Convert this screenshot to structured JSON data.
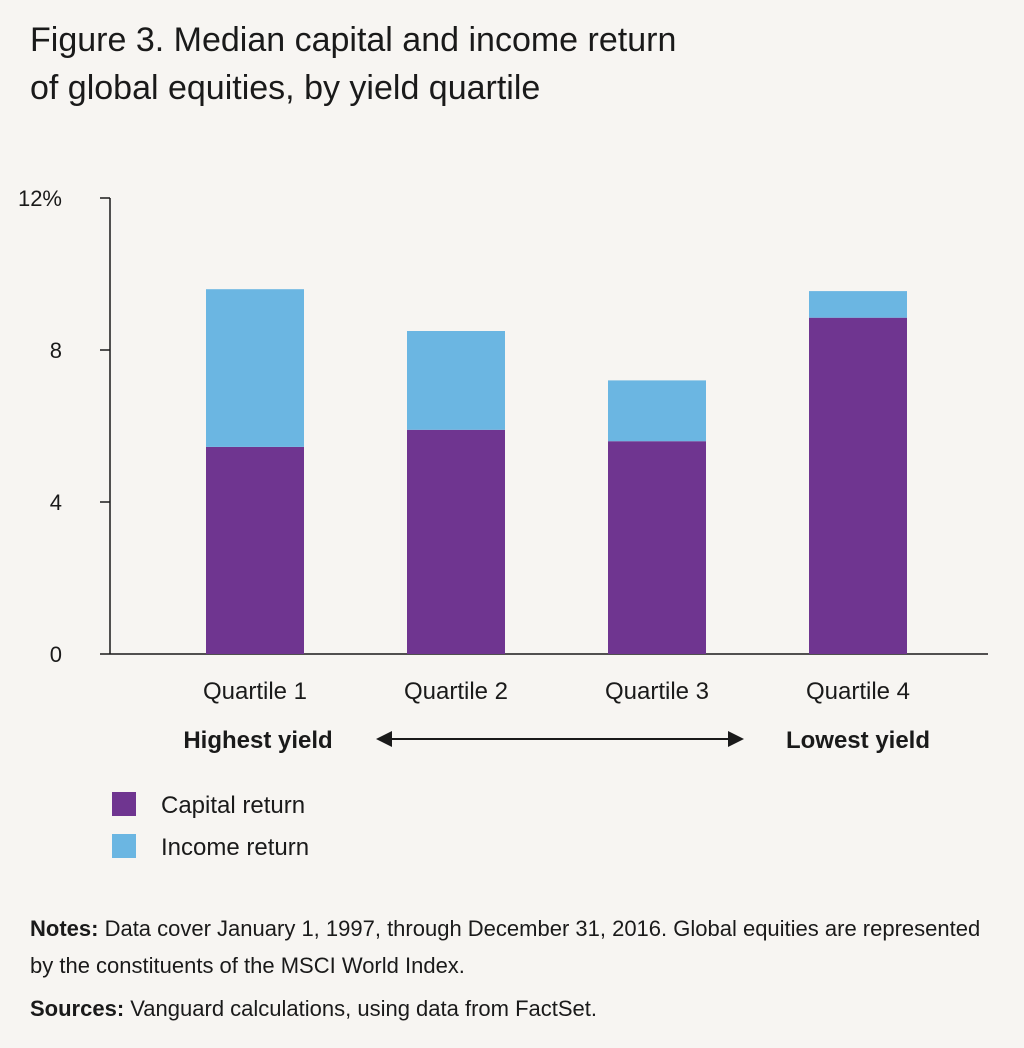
{
  "title": {
    "line1": "Figure 3. Median capital and income return",
    "line2": "of global equities, by yield quartile"
  },
  "chart_data": {
    "type": "bar",
    "stacked": true,
    "categories": [
      "Quartile 1",
      "Quartile 2",
      "Quartile 3",
      "Quartile 4"
    ],
    "series": [
      {
        "name": "Capital return",
        "color": "#6f3590",
        "values": [
          5.45,
          5.9,
          5.6,
          8.85
        ]
      },
      {
        "name": "Income return",
        "color": "#6bb6e2",
        "values": [
          4.15,
          2.6,
          1.6,
          0.7
        ]
      }
    ],
    "ylim": [
      0,
      12
    ],
    "yticks": [
      0,
      4,
      8,
      12
    ],
    "ytick_labels": [
      "0",
      "4",
      "8",
      "12%"
    ],
    "xlabel": "",
    "ylabel": "",
    "annotation": {
      "left": "Highest yield",
      "right": "Lowest yield"
    }
  },
  "notes": {
    "label": "Notes:",
    "text": " Data cover January 1, 1997, through December 31, 2016. Global equities are represented by the constituents of the MSCI World Index."
  },
  "sources": {
    "label": "Sources:",
    "text": " Vanguard calculations, using data from FactSet."
  }
}
